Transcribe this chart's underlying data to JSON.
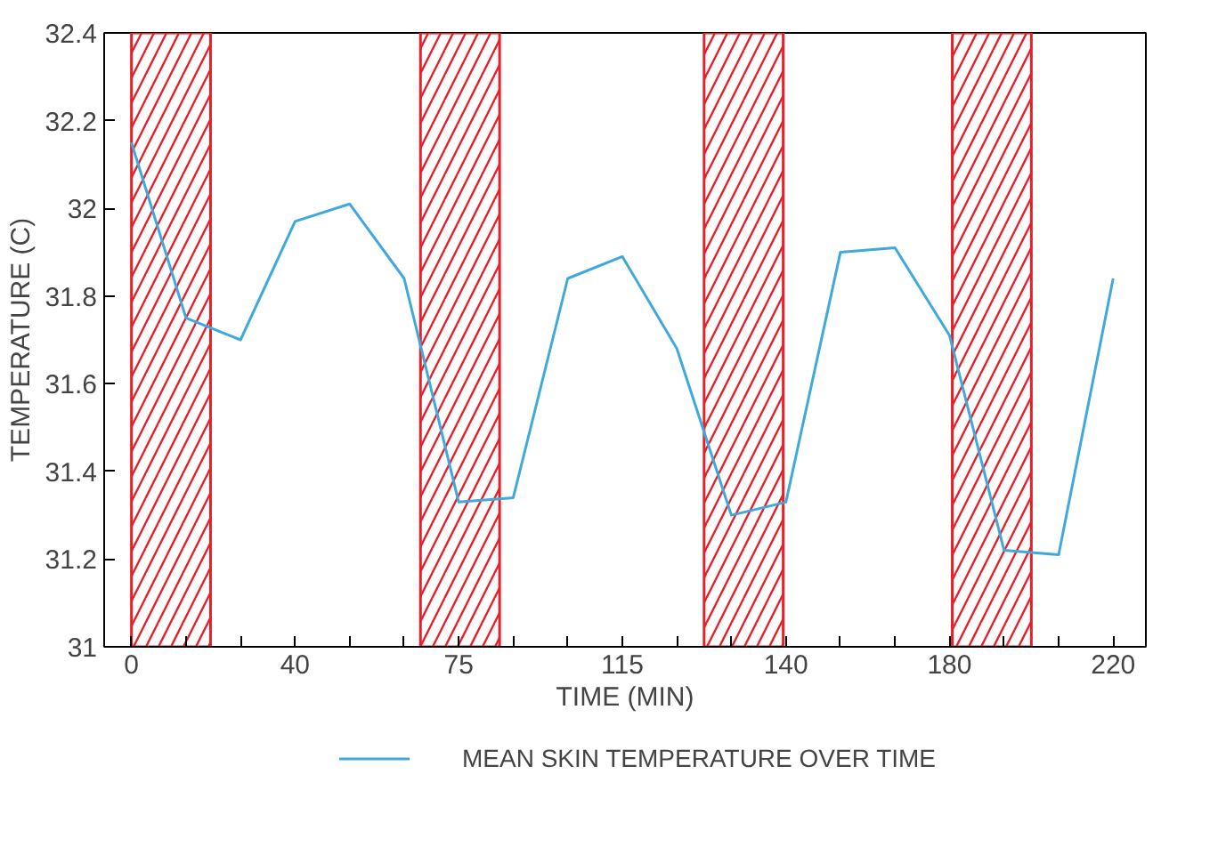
{
  "chart_data": {
    "type": "line",
    "xlabel": "TIME (MIN)",
    "ylabel": "TEMPERATURE (C)",
    "categories": [
      "0",
      null,
      null,
      "40",
      null,
      null,
      "75",
      null,
      null,
      "115",
      null,
      null,
      "140",
      null,
      null,
      "180",
      null,
      null,
      "220"
    ],
    "series": [
      {
        "name": "MEAN SKIN TEMPERATURE OVER TIME",
        "color": "#3fa9dc",
        "values": [
          32.15,
          31.75,
          31.7,
          31.97,
          32.01,
          31.84,
          31.33,
          31.34,
          31.84,
          31.89,
          31.68,
          31.3,
          31.33,
          31.9,
          31.91,
          31.71,
          31.22,
          31.21,
          31.84
        ]
      }
    ],
    "ylim": [
      31,
      32.4
    ],
    "yticks": [
      31,
      31.2,
      31.4,
      31.6,
      31.8,
      32,
      32.2,
      32.4
    ],
    "legend": "bottom",
    "line_style": "solid"
  }
}
